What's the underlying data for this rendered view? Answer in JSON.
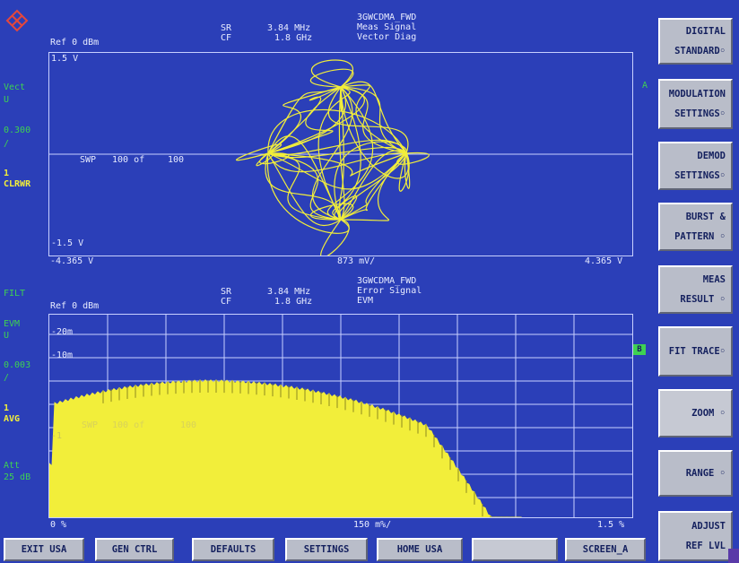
{
  "logo_text": "",
  "upper": {
    "ref_level": "Ref 0 dBm",
    "sr_label": "SR",
    "sr_value": "3.84 MHz",
    "cf_label": "CF",
    "cf_value": "1.8 GHz",
    "title_line1": "3GWCDMA_FWD",
    "title_line2": "Meas Signal",
    "title_line3": "Vector Diag",
    "y_top": "1.5 V",
    "y_bottom": "-1.5 V",
    "x_left": "-4.365 V",
    "x_center": "873 mV/",
    "x_right": "4.365 V",
    "sweep_label": "SWP",
    "sweep_count": "100 of",
    "sweep_total": "100",
    "trace_tag": "A"
  },
  "upper_side": {
    "vect": "Vect",
    "unit": "U",
    "scale": "0.300",
    "slash": "/",
    "trace_no": "1",
    "mode": "CLRWR"
  },
  "lower": {
    "ref_level": "Ref 0 dBm",
    "sr_label": "SR",
    "sr_value": "3.84 MHz",
    "cf_label": "CF",
    "cf_value": "1.8 GHz",
    "title_line1": "3GWCDMA_FWD",
    "title_line2": "Error Signal",
    "title_line3": "EVM",
    "grid_label_1": "-20m",
    "grid_label_2": "-10m",
    "grid_label_3": "-1",
    "sweep_label": "SWP",
    "sweep_count": "100 of",
    "sweep_total": "100",
    "x_left": "0 %",
    "x_center": "150 m%/",
    "x_right": "1.5 %",
    "trace_tag": "B"
  },
  "lower_side": {
    "filt": "FILT",
    "evm": "EVM",
    "unit": "U",
    "scale": "0.003",
    "slash": "/",
    "trace_no": "1",
    "mode": "AVG",
    "att_label": "Att",
    "att_value": "25 dB"
  },
  "softkeys": [
    {
      "line1": "DIGITAL",
      "line2": "STANDARD◦"
    },
    {
      "line1": "MODULATION",
      "line2": "SETTINGS◦"
    },
    {
      "line1": "DEMOD",
      "line2": "SETTINGS◦"
    },
    {
      "line1": "BURST &",
      "line2": "PATTERN ◦"
    },
    {
      "line1": "MEAS",
      "line2": "RESULT ◦"
    },
    {
      "line1": "FIT TRACE◦",
      "line2": ""
    },
    {
      "line1": "ZOOM  ◦",
      "line2": ""
    },
    {
      "line1": "RANGE  ◦",
      "line2": ""
    },
    {
      "line1": "ADJUST",
      "line2": "REF LVL"
    }
  ],
  "hotkeys": [
    "EXIT USA",
    "GEN CTRL",
    "DEFAULTS",
    "SETTINGS",
    "HOME USA",
    "",
    "SCREEN_A"
  ],
  "colors": {
    "background": "#2b3fb8",
    "trace": "#f2ee3a",
    "grid": "#c8d0ff",
    "key": "#b9bdc9",
    "marker": "#3ed152"
  }
}
